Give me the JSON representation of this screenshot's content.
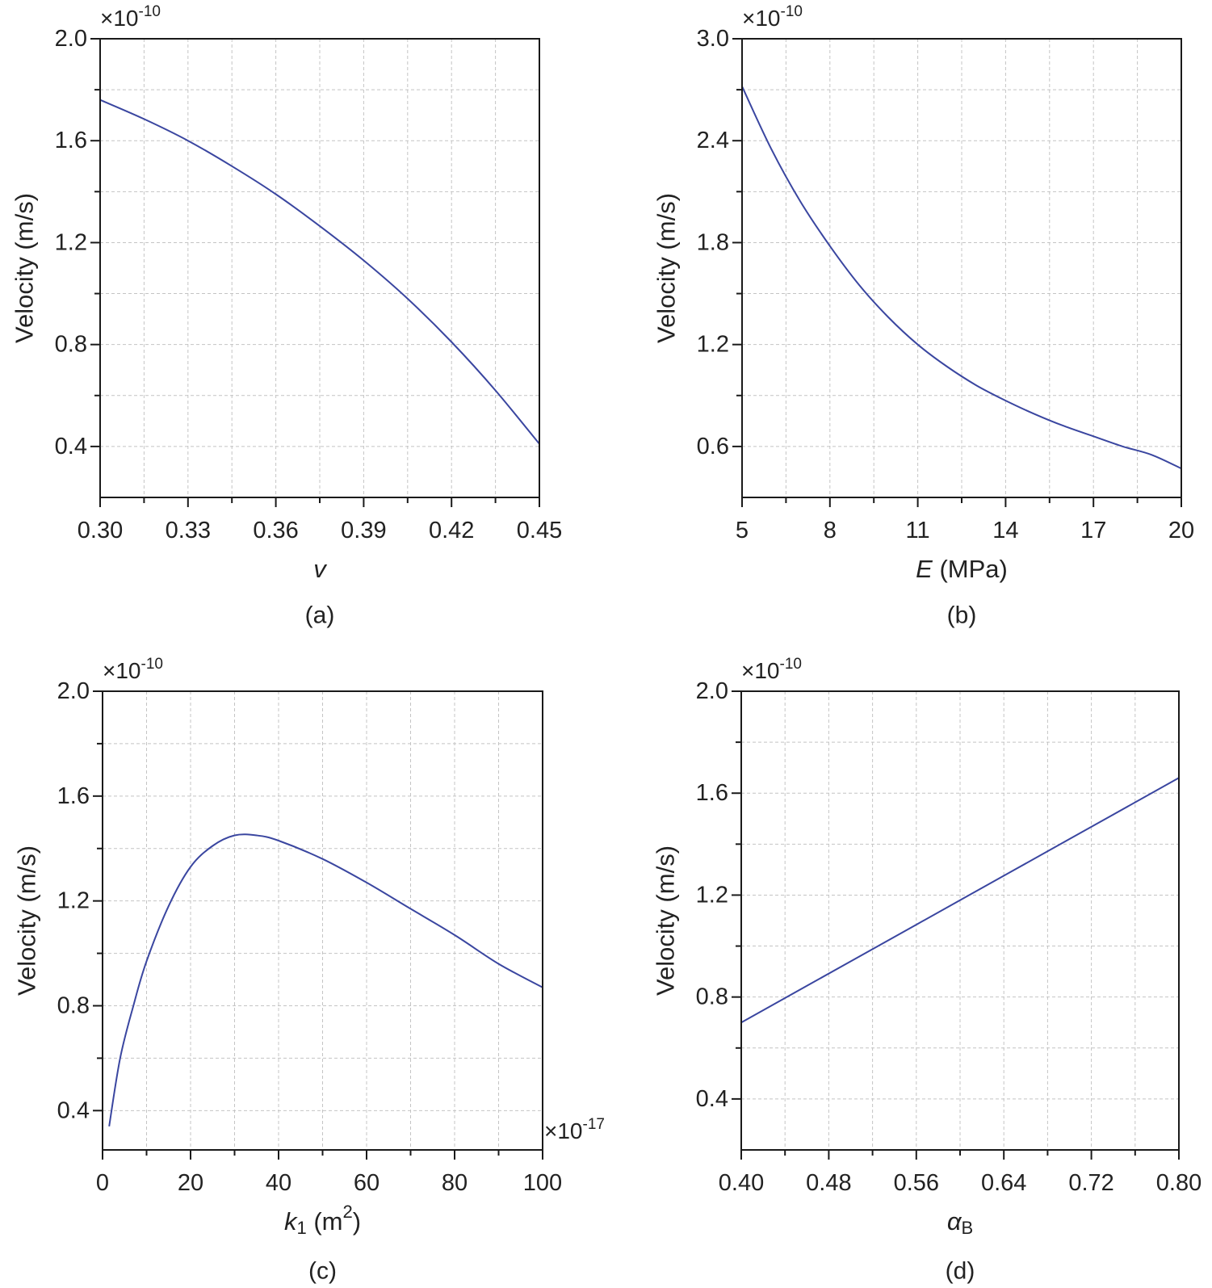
{
  "colors": {
    "series": "#3a46a0",
    "axis": "#1a1a1a",
    "grid": "#c4c4c4"
  },
  "chart_data": [
    {
      "id": "a",
      "type": "line",
      "panel_label": "(a)",
      "xlabel": {
        "main": "v",
        "italic": true
      },
      "ylabel": "Velocity (m/s)",
      "y_multiplier": {
        "base": "×10",
        "exp": "-10"
      },
      "xlim": [
        0.3,
        0.45
      ],
      "ylim": [
        0.2,
        2.0
      ],
      "x_ticks": [
        0.3,
        0.33,
        0.36,
        0.39,
        0.42,
        0.45
      ],
      "x_tick_labels": [
        "0.30",
        "0.33",
        "0.36",
        "0.39",
        "0.42",
        "0.45"
      ],
      "y_ticks": [
        0.4,
        0.8,
        1.2,
        1.6,
        2.0
      ],
      "y_tick_labels": [
        "0.4",
        "0.8",
        "1.2",
        "1.6",
        "2.0"
      ],
      "series": [
        {
          "name": "velocity",
          "x": [
            0.3,
            0.315,
            0.33,
            0.345,
            0.36,
            0.375,
            0.39,
            0.405,
            0.42,
            0.435,
            0.45
          ],
          "values": [
            1.76,
            1.685,
            1.6,
            1.5,
            1.39,
            1.265,
            1.13,
            0.98,
            0.81,
            0.62,
            0.41
          ]
        }
      ]
    },
    {
      "id": "b",
      "type": "line",
      "panel_label": "(b)",
      "xlabel": {
        "main": "E",
        "italic": true,
        "suffix": " (MPa)"
      },
      "ylabel": "Velocity (m/s)",
      "y_multiplier": {
        "base": "×10",
        "exp": "-10"
      },
      "xlim": [
        5,
        20
      ],
      "ylim": [
        0.3,
        3.0
      ],
      "x_ticks": [
        5,
        8,
        11,
        14,
        17,
        20
      ],
      "x_tick_labels": [
        "5",
        "8",
        "11",
        "14",
        "17",
        "20"
      ],
      "y_ticks": [
        0.6,
        1.2,
        1.8,
        2.4,
        3.0
      ],
      "y_tick_labels": [
        "0.6",
        "1.2",
        "1.8",
        "2.4",
        "3.0"
      ],
      "series": [
        {
          "name": "velocity",
          "x": [
            5,
            6,
            7,
            8,
            9,
            10,
            11,
            12,
            13,
            14,
            15,
            16,
            17,
            18,
            19,
            20
          ],
          "values": [
            2.72,
            2.35,
            2.04,
            1.78,
            1.55,
            1.36,
            1.2,
            1.07,
            0.96,
            0.87,
            0.79,
            0.72,
            0.66,
            0.6,
            0.55,
            0.47
          ]
        }
      ]
    },
    {
      "id": "c",
      "type": "line",
      "panel_label": "(c)",
      "xlabel": {
        "main": "k",
        "italic": true,
        "sub": "1",
        "suffix": " (m",
        "sup": "2",
        "after": ")"
      },
      "ylabel": "Velocity (m/s)",
      "y_multiplier": {
        "base": "×10",
        "exp": "-10"
      },
      "x_multiplier": {
        "base": "×10",
        "exp": "-17"
      },
      "xlim": [
        0,
        100
      ],
      "ylim": [
        0.25,
        2.0
      ],
      "x_ticks": [
        0,
        20,
        40,
        60,
        80,
        100
      ],
      "x_tick_labels": [
        "0",
        "20",
        "40",
        "60",
        "80",
        "100"
      ],
      "y_ticks": [
        0.4,
        0.8,
        1.2,
        1.6,
        2.0
      ],
      "y_tick_labels": [
        "0.4",
        "0.8",
        "1.2",
        "1.6",
        "2.0"
      ],
      "series": [
        {
          "name": "velocity",
          "x": [
            1.5,
            4,
            7,
            10,
            15,
            20,
            25,
            30,
            35,
            40,
            50,
            60,
            70,
            80,
            90,
            100
          ],
          "values": [
            0.34,
            0.6,
            0.8,
            0.97,
            1.18,
            1.33,
            1.41,
            1.45,
            1.45,
            1.43,
            1.36,
            1.27,
            1.17,
            1.07,
            0.96,
            0.87
          ]
        }
      ]
    },
    {
      "id": "d",
      "type": "line",
      "panel_label": "(d)",
      "xlabel": {
        "main": "α",
        "italic": true,
        "sub": "B"
      },
      "ylabel": "Velocity (m/s)",
      "y_multiplier": {
        "base": "×10",
        "exp": "-10"
      },
      "xlim": [
        0.4,
        0.8
      ],
      "ylim": [
        0.2,
        2.0
      ],
      "x_ticks": [
        0.4,
        0.48,
        0.56,
        0.64,
        0.72,
        0.8
      ],
      "x_tick_labels": [
        "0.40",
        "0.48",
        "0.56",
        "0.64",
        "0.72",
        "0.80"
      ],
      "y_ticks": [
        0.4,
        0.8,
        1.2,
        1.6,
        2.0
      ],
      "y_tick_labels": [
        "0.4",
        "0.8",
        "1.2",
        "1.6",
        "2.0"
      ],
      "series": [
        {
          "name": "velocity",
          "x": [
            0.4,
            0.5,
            0.6,
            0.7,
            0.8
          ],
          "values": [
            0.7,
            0.94,
            1.18,
            1.42,
            1.66
          ]
        }
      ]
    }
  ]
}
